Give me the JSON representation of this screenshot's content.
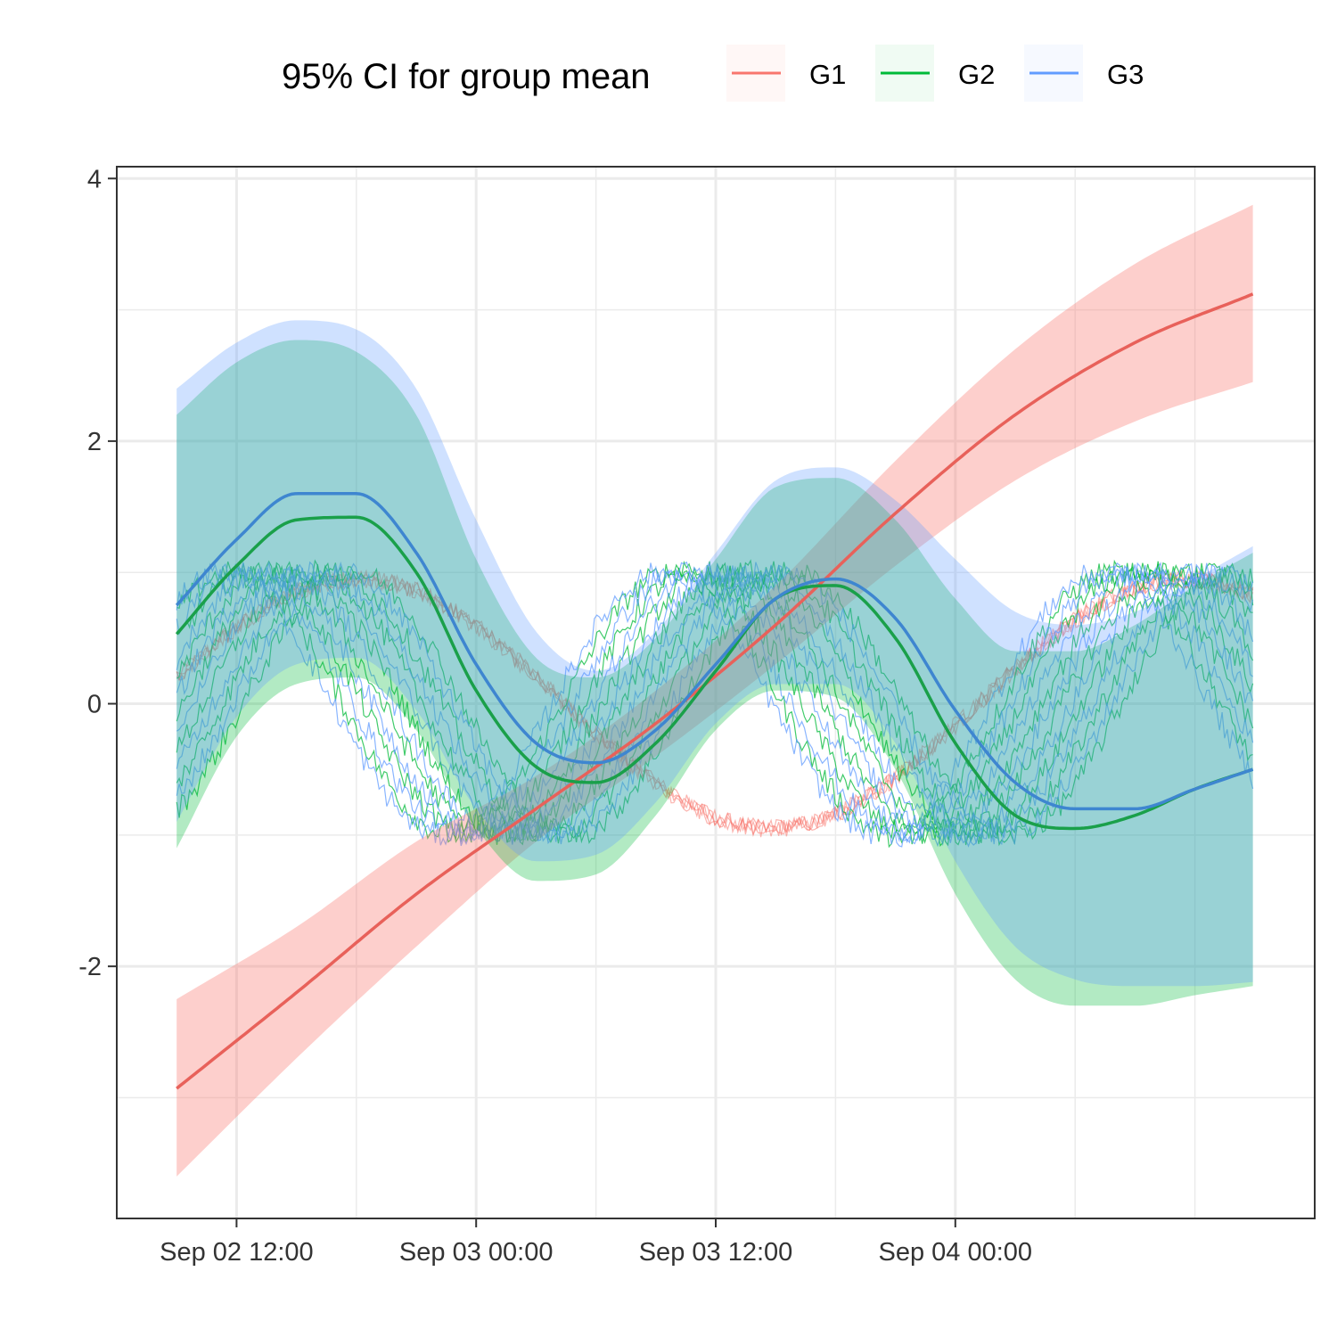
{
  "chart_data": {
    "type": "line",
    "legend": {
      "title": "95% CI for group mean",
      "position": "top",
      "entries": [
        "G1",
        "G2",
        "G3"
      ]
    },
    "x_axis": {
      "type": "datetime",
      "range": [
        "2022-09-02 06:00",
        "2022-09-04 18:00"
      ],
      "ticks": [
        "Sep 02 12:00",
        "Sep 03 00:00",
        "Sep 03 12:00",
        "Sep 04 00:00"
      ],
      "tick_values": [
        "2022-09-02 12:00",
        "2022-09-03 00:00",
        "2022-09-03 12:00",
        "2022-09-04 00:00"
      ]
    },
    "y_axis": {
      "range": [
        -3.92,
        4.09
      ],
      "ticks": [
        "-2",
        "0",
        "2",
        "4"
      ],
      "tick_values": [
        -2,
        0,
        2,
        4
      ]
    },
    "grid": true,
    "series": [
      {
        "name": "G1",
        "color": "#F8766D",
        "mean": [
          {
            "x": "2022-09-02 09:00",
            "y": -2.93
          },
          {
            "x": "2022-09-02 15:00",
            "y": -2.2
          },
          {
            "x": "2022-09-02 21:00",
            "y": -1.45
          },
          {
            "x": "2022-09-03 03:00",
            "y": -0.8
          },
          {
            "x": "2022-09-03 09:00",
            "y": -0.15
          },
          {
            "x": "2022-09-03 15:00",
            "y": 0.6
          },
          {
            "x": "2022-09-03 21:00",
            "y": 1.45
          },
          {
            "x": "2022-09-04 03:00",
            "y": 2.2
          },
          {
            "x": "2022-09-04 09:00",
            "y": 2.75
          },
          {
            "x": "2022-09-04 14:54",
            "y": 3.12
          }
        ],
        "ci_lower": [
          {
            "x": "2022-09-02 09:00",
            "y": -3.6
          },
          {
            "x": "2022-09-02 15:00",
            "y": -2.7
          },
          {
            "x": "2022-09-02 21:00",
            "y": -1.85
          },
          {
            "x": "2022-09-03 03:00",
            "y": -1.05
          },
          {
            "x": "2022-09-03 09:00",
            "y": -0.4
          },
          {
            "x": "2022-09-03 15:00",
            "y": 0.3
          },
          {
            "x": "2022-09-03 21:00",
            "y": 1.05
          },
          {
            "x": "2022-09-04 03:00",
            "y": 1.7
          },
          {
            "x": "2022-09-04 09:00",
            "y": 2.15
          },
          {
            "x": "2022-09-04 14:54",
            "y": 2.45
          }
        ],
        "ci_upper": [
          {
            "x": "2022-09-02 09:00",
            "y": -2.25
          },
          {
            "x": "2022-09-02 15:00",
            "y": -1.7
          },
          {
            "x": "2022-09-02 21:00",
            "y": -1.05
          },
          {
            "x": "2022-09-03 03:00",
            "y": -0.55
          },
          {
            "x": "2022-09-03 09:00",
            "y": 0.1
          },
          {
            "x": "2022-09-03 15:00",
            "y": 0.9
          },
          {
            "x": "2022-09-03 21:00",
            "y": 1.85
          },
          {
            "x": "2022-09-04 03:00",
            "y": 2.7
          },
          {
            "x": "2022-09-04 09:00",
            "y": 3.35
          },
          {
            "x": "2022-09-04 14:54",
            "y": 3.8
          }
        ]
      },
      {
        "name": "G2",
        "color": "#00BA38",
        "mean": [
          {
            "x": "2022-09-02 09:00",
            "y": 0.53
          },
          {
            "x": "2022-09-02 12:00",
            "y": 1.05
          },
          {
            "x": "2022-09-02 15:00",
            "y": 1.4
          },
          {
            "x": "2022-09-02 18:00",
            "y": 1.42
          },
          {
            "x": "2022-09-02 21:00",
            "y": 1.0
          },
          {
            "x": "2022-09-03 00:00",
            "y": 0.1
          },
          {
            "x": "2022-09-03 03:00",
            "y": -0.48
          },
          {
            "x": "2022-09-03 06:00",
            "y": -0.6
          },
          {
            "x": "2022-09-03 09:00",
            "y": -0.3
          },
          {
            "x": "2022-09-03 12:00",
            "y": 0.25
          },
          {
            "x": "2022-09-03 15:00",
            "y": 0.8
          },
          {
            "x": "2022-09-03 18:00",
            "y": 0.9
          },
          {
            "x": "2022-09-03 21:00",
            "y": 0.5
          },
          {
            "x": "2022-09-04 00:00",
            "y": -0.3
          },
          {
            "x": "2022-09-04 03:00",
            "y": -0.85
          },
          {
            "x": "2022-09-04 06:00",
            "y": -0.95
          },
          {
            "x": "2022-09-04 09:00",
            "y": -0.85
          },
          {
            "x": "2022-09-04 12:00",
            "y": -0.65
          },
          {
            "x": "2022-09-04 14:54",
            "y": -0.5
          }
        ],
        "ci_lower": [
          {
            "x": "2022-09-02 09:00",
            "y": -1.1
          },
          {
            "x": "2022-09-02 12:00",
            "y": -0.25
          },
          {
            "x": "2022-09-02 15:00",
            "y": 0.15
          },
          {
            "x": "2022-09-02 18:00",
            "y": 0.2
          },
          {
            "x": "2022-09-02 21:00",
            "y": -0.2
          },
          {
            "x": "2022-09-03 00:00",
            "y": -0.95
          },
          {
            "x": "2022-09-03 03:00",
            "y": -1.35
          },
          {
            "x": "2022-09-03 06:00",
            "y": -1.3
          },
          {
            "x": "2022-09-03 09:00",
            "y": -0.85
          },
          {
            "x": "2022-09-03 12:00",
            "y": -0.2
          },
          {
            "x": "2022-09-03 15:00",
            "y": 0.1
          },
          {
            "x": "2022-09-03 18:00",
            "y": 0.05
          },
          {
            "x": "2022-09-03 21:00",
            "y": -0.5
          },
          {
            "x": "2022-09-04 00:00",
            "y": -1.45
          },
          {
            "x": "2022-09-04 03:00",
            "y": -2.1
          },
          {
            "x": "2022-09-04 06:00",
            "y": -2.3
          },
          {
            "x": "2022-09-04 09:00",
            "y": -2.3
          },
          {
            "x": "2022-09-04 12:00",
            "y": -2.22
          },
          {
            "x": "2022-09-04 14:54",
            "y": -2.15
          }
        ],
        "ci_upper": [
          {
            "x": "2022-09-02 09:00",
            "y": 2.2
          },
          {
            "x": "2022-09-02 12:00",
            "y": 2.6
          },
          {
            "x": "2022-09-02 15:00",
            "y": 2.77
          },
          {
            "x": "2022-09-02 18:00",
            "y": 2.68
          },
          {
            "x": "2022-09-02 21:00",
            "y": 2.2
          },
          {
            "x": "2022-09-03 00:00",
            "y": 1.1
          },
          {
            "x": "2022-09-03 03:00",
            "y": 0.35
          },
          {
            "x": "2022-09-03 06:00",
            "y": 0.2
          },
          {
            "x": "2022-09-03 09:00",
            "y": 0.5
          },
          {
            "x": "2022-09-03 12:00",
            "y": 1.1
          },
          {
            "x": "2022-09-03 15:00",
            "y": 1.65
          },
          {
            "x": "2022-09-03 18:00",
            "y": 1.72
          },
          {
            "x": "2022-09-03 21:00",
            "y": 1.4
          },
          {
            "x": "2022-09-04 00:00",
            "y": 0.8
          },
          {
            "x": "2022-09-04 03:00",
            "y": 0.4
          },
          {
            "x": "2022-09-04 06:00",
            "y": 0.4
          },
          {
            "x": "2022-09-04 09:00",
            "y": 0.6
          },
          {
            "x": "2022-09-04 12:00",
            "y": 0.9
          },
          {
            "x": "2022-09-04 14:54",
            "y": 1.15
          }
        ]
      },
      {
        "name": "G3",
        "color": "#619CFF",
        "mean": [
          {
            "x": "2022-09-02 09:00",
            "y": 0.75
          },
          {
            "x": "2022-09-02 12:00",
            "y": 1.25
          },
          {
            "x": "2022-09-02 15:00",
            "y": 1.6
          },
          {
            "x": "2022-09-02 18:00",
            "y": 1.6
          },
          {
            "x": "2022-09-02 21:00",
            "y": 1.15
          },
          {
            "x": "2022-09-03 00:00",
            "y": 0.3
          },
          {
            "x": "2022-09-03 03:00",
            "y": -0.3
          },
          {
            "x": "2022-09-03 06:00",
            "y": -0.45
          },
          {
            "x": "2022-09-03 09:00",
            "y": -0.2
          },
          {
            "x": "2022-09-03 12:00",
            "y": 0.3
          },
          {
            "x": "2022-09-03 15:00",
            "y": 0.8
          },
          {
            "x": "2022-09-03 18:00",
            "y": 0.95
          },
          {
            "x": "2022-09-03 21:00",
            "y": 0.65
          },
          {
            "x": "2022-09-04 00:00",
            "y": -0.05
          },
          {
            "x": "2022-09-04 03:00",
            "y": -0.6
          },
          {
            "x": "2022-09-04 06:00",
            "y": -0.8
          },
          {
            "x": "2022-09-04 09:00",
            "y": -0.8
          },
          {
            "x": "2022-09-04 12:00",
            "y": -0.65
          },
          {
            "x": "2022-09-04 14:54",
            "y": -0.5
          }
        ],
        "ci_lower": [
          {
            "x": "2022-09-02 09:00",
            "y": -0.9
          },
          {
            "x": "2022-09-02 12:00",
            "y": -0.1
          },
          {
            "x": "2022-09-02 15:00",
            "y": 0.3
          },
          {
            "x": "2022-09-02 18:00",
            "y": 0.35
          },
          {
            "x": "2022-09-02 21:00",
            "y": -0.05
          },
          {
            "x": "2022-09-03 00:00",
            "y": -0.8
          },
          {
            "x": "2022-09-03 03:00",
            "y": -1.2
          },
          {
            "x": "2022-09-03 06:00",
            "y": -1.15
          },
          {
            "x": "2022-09-03 09:00",
            "y": -0.75
          },
          {
            "x": "2022-09-03 12:00",
            "y": -0.15
          },
          {
            "x": "2022-09-03 15:00",
            "y": 0.15
          },
          {
            "x": "2022-09-03 18:00",
            "y": 0.15
          },
          {
            "x": "2022-09-03 21:00",
            "y": -0.3
          },
          {
            "x": "2022-09-04 00:00",
            "y": -1.2
          },
          {
            "x": "2022-09-04 03:00",
            "y": -1.85
          },
          {
            "x": "2022-09-04 06:00",
            "y": -2.1
          },
          {
            "x": "2022-09-04 09:00",
            "y": -2.15
          },
          {
            "x": "2022-09-04 12:00",
            "y": -2.15
          },
          {
            "x": "2022-09-04 14:54",
            "y": -2.12
          }
        ],
        "ci_upper": [
          {
            "x": "2022-09-02 09:00",
            "y": 2.4
          },
          {
            "x": "2022-09-02 12:00",
            "y": 2.75
          },
          {
            "x": "2022-09-02 15:00",
            "y": 2.92
          },
          {
            "x": "2022-09-02 18:00",
            "y": 2.85
          },
          {
            "x": "2022-09-02 21:00",
            "y": 2.4
          },
          {
            "x": "2022-09-03 00:00",
            "y": 1.4
          },
          {
            "x": "2022-09-03 03:00",
            "y": 0.55
          },
          {
            "x": "2022-09-03 06:00",
            "y": 0.25
          },
          {
            "x": "2022-09-03 09:00",
            "y": 0.55
          },
          {
            "x": "2022-09-03 12:00",
            "y": 1.15
          },
          {
            "x": "2022-09-03 15:00",
            "y": 1.7
          },
          {
            "x": "2022-09-03 18:00",
            "y": 1.8
          },
          {
            "x": "2022-09-03 21:00",
            "y": 1.55
          },
          {
            "x": "2022-09-04 00:00",
            "y": 1.1
          },
          {
            "x": "2022-09-04 03:00",
            "y": 0.7
          },
          {
            "x": "2022-09-04 06:00",
            "y": 0.6
          },
          {
            "x": "2022-09-04 09:00",
            "y": 0.7
          },
          {
            "x": "2022-09-04 12:00",
            "y": 0.95
          },
          {
            "x": "2022-09-04 14:54",
            "y": 1.2
          }
        ]
      }
    ]
  }
}
